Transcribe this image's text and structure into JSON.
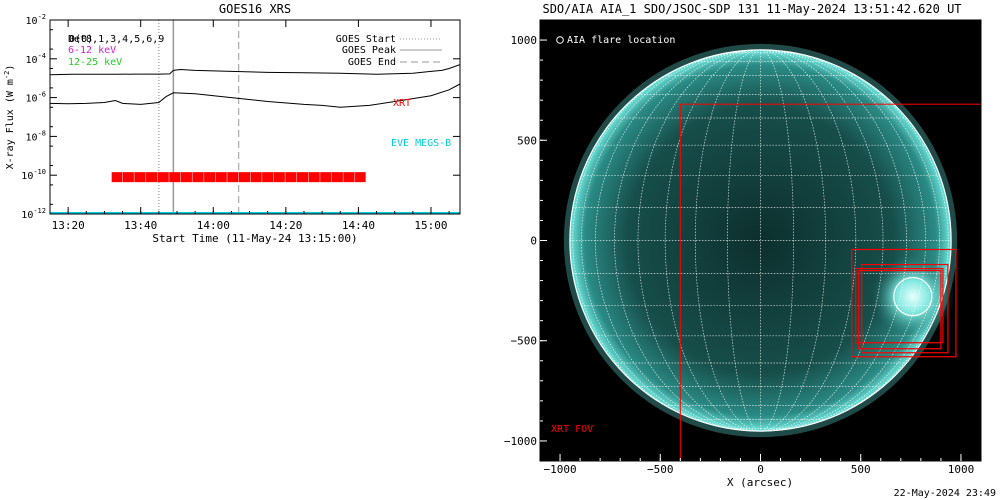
{
  "left_panel": {
    "title": "GOES16 XRS",
    "ylabel": "X-ray Flux (W m",
    "ylabel_sup": "-2",
    "ylabel_end": ")",
    "xlabel": "Start Time (11-May-24 13:15:00)",
    "upper_left_labels": [
      {
        "text": "Det8,1,3,4,5,6,9",
        "color": "#000000"
      },
      {
        "text": "6-12 keV",
        "color": "#cc22cc"
      },
      {
        "text": "12-25 keV",
        "color": "#22cc22"
      }
    ],
    "overlay_label": "0(0)",
    "legend": [
      {
        "label": "GOES Start",
        "style": "dotted"
      },
      {
        "label": "GOES Peak",
        "style": "solid"
      },
      {
        "label": "GOES End",
        "style": "dashed"
      }
    ],
    "xrt_label": "XRT",
    "xrt_color": "#ff0000",
    "eve_label": "EVE MEGS-B",
    "eve_color": "#00ccdd"
  },
  "right_panel": {
    "title": "SDO/AIA AIA_1 SDO/JSOC-SDP 131 11-May-2024 13:51:42.620 UT",
    "xlabel": "X (arcsec)",
    "flare_label": "AIA flare location",
    "fov_label": "XRT FOV",
    "timestamp": "22-May-2024 23:49",
    "accent_color": "#ff0000",
    "disk_color": "#1a6b66"
  },
  "chart_data": [
    {
      "type": "line",
      "title": "GOES16 XRS",
      "xlabel": "Start Time (11-May-24 13:15:00)",
      "ylabel": "X-ray Flux (W m-2)",
      "x_unit": "minutes after 13:15",
      "xlim": [
        0,
        113
      ],
      "x_ticks": [
        {
          "value": 5,
          "label": "13:20"
        },
        {
          "value": 25,
          "label": "13:40"
        },
        {
          "value": 45,
          "label": "14:00"
        },
        {
          "value": 65,
          "label": "14:20"
        },
        {
          "value": 85,
          "label": "14:40"
        },
        {
          "value": 105,
          "label": "15:00"
        }
      ],
      "y_scale": "log",
      "ylim_exponent": [
        -12,
        -2
      ],
      "y_ticks": [
        {
          "exp": -2,
          "label": "10",
          "sup": "-2"
        },
        {
          "exp": -4,
          "label": "10",
          "sup": "-4"
        },
        {
          "exp": -6,
          "label": "10",
          "sup": "-6"
        },
        {
          "exp": -8,
          "label": "10",
          "sup": "-8"
        },
        {
          "exp": -10,
          "label": "10",
          "sup": "-10"
        },
        {
          "exp": -12,
          "label": "10",
          "sup": "-12"
        }
      ],
      "series": [
        {
          "color": "#000000",
          "x": [
            0,
            6,
            12,
            18,
            24,
            30,
            33,
            34,
            36,
            40,
            50,
            60,
            70,
            80,
            90,
            100,
            105,
            108,
            110,
            113
          ],
          "log_y": [
            -4.82,
            -4.8,
            -4.8,
            -4.8,
            -4.79,
            -4.79,
            -4.78,
            -4.6,
            -4.55,
            -4.6,
            -4.65,
            -4.7,
            -4.72,
            -4.75,
            -4.8,
            -4.75,
            -4.65,
            -4.6,
            -4.5,
            -4.3
          ]
        },
        {
          "color": "#000000",
          "x": [
            0,
            5,
            10,
            15,
            18,
            20,
            25,
            30,
            32,
            34,
            40,
            50,
            60,
            70,
            75,
            80,
            88,
            95,
            100,
            105,
            110,
            113
          ],
          "log_y": [
            -6.3,
            -6.32,
            -6.3,
            -6.25,
            -6.15,
            -6.3,
            -6.35,
            -6.25,
            -5.95,
            -5.75,
            -5.8,
            -6.0,
            -6.2,
            -6.35,
            -6.4,
            -6.5,
            -6.4,
            -6.2,
            -6.05,
            -5.9,
            -5.6,
            -5.3
          ]
        },
        {
          "color": "#00ccdd",
          "x": [
            0,
            113
          ],
          "log_y": [
            -11.95,
            -11.95
          ]
        }
      ],
      "events": [
        {
          "label": "GOES Start",
          "x": 30
        },
        {
          "label": "GOES Peak",
          "x": 34
        },
        {
          "label": "GOES End",
          "x": 52
        }
      ],
      "xrt_bar": {
        "x_start": 17,
        "x_end": 87,
        "log_y": -10.1
      }
    },
    {
      "type": "scatter",
      "title": "SDO/AIA AIA_1 SDO/JSOC-SDP 131 11-May-2024 13:51:42.620 UT",
      "xlabel": "X (arcsec)",
      "ylabel": "",
      "xlim": [
        -1100,
        1100
      ],
      "ylim": [
        -1100,
        1100
      ],
      "x_ticks": [
        -1000,
        -500,
        0,
        500,
        1000
      ],
      "y_ticks": [
        -1000,
        -500,
        0,
        500,
        1000
      ],
      "solar_radius_arcsec": 951,
      "flare_location": {
        "x": 760,
        "y": -280,
        "radius": 95
      },
      "xrt_fov": {
        "x0": -400,
        "y0": -1100,
        "x1": 1100,
        "y1": 680
      },
      "xrt_pointings": [
        {
          "x0": 455,
          "y0": -580,
          "x1": 975,
          "y1": -45
        },
        {
          "x0": 475,
          "y0": -510,
          "x1": 910,
          "y1": -140
        },
        {
          "x0": 490,
          "y0": -540,
          "x1": 900,
          "y1": -150
        },
        {
          "x0": 505,
          "y0": -560,
          "x1": 935,
          "y1": -120
        }
      ]
    }
  ]
}
